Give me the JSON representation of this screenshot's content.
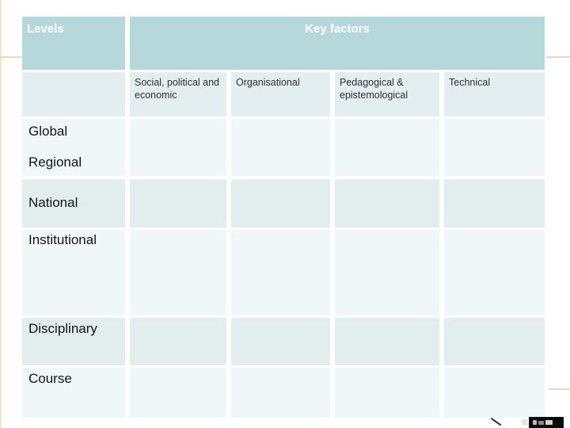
{
  "slide": {
    "header": {
      "levels": "Levels",
      "key_factors": "Key factors"
    },
    "factor_columns": [
      "Social, political and economic",
      "Organisational",
      "Pedagogical & epistemological",
      "Technical"
    ],
    "level_rows": [
      "Global",
      "Regional",
      "National",
      "Institutional",
      "Disciplinary",
      "Course"
    ],
    "colors": {
      "header_teal": "#b5d8db",
      "column_header_bg": "#e3eef0",
      "row_light": "#f0f7f8",
      "row_shaded": "#e2edee",
      "accent_line": "#e8dcbc",
      "header_text": "#ffffff",
      "body_text": "#141414"
    }
  },
  "chart_data": {
    "type": "table",
    "title": "Levels vs Key factors",
    "row_header_column": "Levels",
    "column_group_header": "Key factors",
    "columns": [
      "Social, political and economic",
      "Organisational",
      "Pedagogical & epistemological",
      "Technical"
    ],
    "rows": [
      "Global",
      "Regional",
      "National",
      "Institutional",
      "Disciplinary",
      "Course"
    ],
    "cell_values": "all cells empty"
  }
}
